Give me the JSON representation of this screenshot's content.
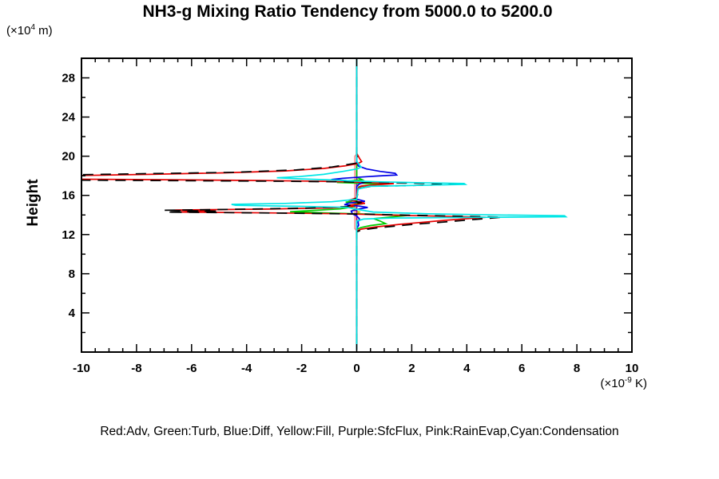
{
  "page": {
    "background": "#ffffff"
  },
  "chart_data": {
    "type": "line",
    "title": "NH3-g Mixing Ratio Tendency from 5000.0 to 5200.0",
    "ylabel": "Height",
    "y_axis_unit": {
      "pre": "(×10",
      "sup": "4",
      "post": " m)"
    },
    "x_axis_unit": {
      "pre": "(×10",
      "sup": "-9",
      "post": " K)"
    },
    "xlim": [
      -10,
      10
    ],
    "ylim": [
      0,
      30
    ],
    "x_major_ticks": [
      -10,
      -8,
      -6,
      -4,
      -2,
      0,
      2,
      4,
      6,
      8,
      10
    ],
    "x_minor_step": 0.5,
    "y_major_ticks": [
      4,
      8,
      12,
      16,
      20,
      24,
      28
    ],
    "y_minor_step": 2,
    "grid": false,
    "frame_color": "#000000",
    "legend": {
      "position": "bottom",
      "text": "Red:Adv, Green:Turb, Blue:Diff, Yellow:Fill, Purple:SfcFlux, Pink:RainEvap,Cyan:Condensation"
    },
    "series": [
      {
        "name": "fill",
        "legend_label": "Yellow:Fill",
        "color": "#cccc00",
        "dash": null,
        "points": [
          [
            0,
            29.9
          ],
          [
            0,
            17.6
          ],
          [
            0.14,
            17.4
          ],
          [
            0,
            17.22
          ],
          [
            0,
            14.72
          ],
          [
            -0.14,
            14.5
          ],
          [
            0.1,
            14.3
          ],
          [
            0,
            14.1
          ],
          [
            0,
            0.2
          ]
        ]
      },
      {
        "name": "sfcflux",
        "legend_label": "Purple:SfcFlux",
        "color": "#990099",
        "dash": null,
        "points": [
          [
            0,
            29.9
          ],
          [
            0,
            0.2
          ]
        ]
      },
      {
        "name": "rainevap",
        "legend_label": "Pink:RainEvap",
        "color": "#ff9999",
        "dash": null,
        "points": [
          [
            0,
            29.9
          ],
          [
            0,
            20.2
          ],
          [
            -0.07,
            20.0
          ],
          [
            -0.07,
            12.6
          ],
          [
            0,
            12.4
          ],
          [
            0,
            0.2
          ]
        ]
      },
      {
        "name": "turb",
        "legend_label": "Green:Turb",
        "color": "#00cc00",
        "dash": null,
        "points": [
          [
            0,
            29.9
          ],
          [
            0,
            17.85
          ],
          [
            0.2,
            17.6
          ],
          [
            -0.35,
            17.45
          ],
          [
            -0.72,
            17.32
          ],
          [
            0.3,
            17.22
          ],
          [
            1.0,
            17.14
          ],
          [
            0.4,
            17.02
          ],
          [
            0.08,
            16.88
          ],
          [
            0,
            16.2
          ],
          [
            0,
            15.5
          ],
          [
            -0.4,
            15.3
          ],
          [
            0.22,
            15.14
          ],
          [
            -0.22,
            15.0
          ],
          [
            -0.05,
            14.86
          ],
          [
            -0.6,
            14.62
          ],
          [
            -1.6,
            14.46
          ],
          [
            -2.42,
            14.33
          ],
          [
            -1.0,
            14.2
          ],
          [
            0.6,
            14.07
          ],
          [
            1.82,
            13.94
          ],
          [
            1.2,
            13.78
          ],
          [
            0.62,
            13.62
          ],
          [
            0.85,
            13.38
          ],
          [
            1.05,
            13.12
          ],
          [
            0.5,
            12.92
          ],
          [
            0.15,
            12.72
          ],
          [
            0,
            12.52
          ],
          [
            0,
            0.2
          ]
        ]
      },
      {
        "name": "diff",
        "legend_label": "Blue:Diff",
        "color": "#0000e6",
        "dash": null,
        "points": [
          [
            0,
            29.9
          ],
          [
            0,
            19.35
          ],
          [
            0.06,
            19.0
          ],
          [
            0.35,
            18.7
          ],
          [
            0.85,
            18.45
          ],
          [
            1.4,
            18.25
          ],
          [
            1.45,
            18.08
          ],
          [
            0.8,
            17.98
          ],
          [
            0.2,
            17.88
          ],
          [
            -0.5,
            17.75
          ],
          [
            -0.92,
            17.62
          ],
          [
            -0.4,
            17.52
          ],
          [
            -0.08,
            17.42
          ],
          [
            0.3,
            17.32
          ],
          [
            0.1,
            17.18
          ],
          [
            0,
            16.9
          ],
          [
            0,
            15.6
          ],
          [
            0.3,
            15.4
          ],
          [
            -0.3,
            15.2
          ],
          [
            -0.45,
            15.05
          ],
          [
            0.1,
            14.9
          ],
          [
            0.4,
            14.76
          ],
          [
            0.1,
            14.62
          ],
          [
            -0.2,
            14.4
          ],
          [
            -0.15,
            14.1
          ],
          [
            0,
            13.9
          ],
          [
            0.1,
            13.6
          ],
          [
            0.05,
            13.3
          ],
          [
            0.07,
            12.95
          ],
          [
            0,
            12.6
          ],
          [
            0,
            0.2
          ]
        ]
      },
      {
        "name": "adv",
        "legend_label": "Red:Adv",
        "color": "#e60000",
        "dash": null,
        "points": [
          [
            0,
            29.9
          ],
          [
            0,
            20.3
          ],
          [
            0.12,
            19.7
          ],
          [
            0.18,
            19.45
          ],
          [
            0.05,
            19.25
          ],
          [
            -0.45,
            19.0
          ],
          [
            -1.2,
            18.75
          ],
          [
            -2.6,
            18.5
          ],
          [
            -4.8,
            18.3
          ],
          [
            -7.5,
            18.15
          ],
          [
            -10.35,
            18.02
          ],
          [
            -10.35,
            17.66
          ],
          [
            -7.0,
            17.6
          ],
          [
            -3.5,
            17.52
          ],
          [
            -1.2,
            17.44
          ],
          [
            -0.3,
            17.38
          ],
          [
            0.6,
            17.3
          ],
          [
            1.35,
            17.2
          ],
          [
            0.7,
            17.08
          ],
          [
            0.15,
            16.95
          ],
          [
            0.02,
            16.6
          ],
          [
            0,
            15.75
          ],
          [
            -0.3,
            15.5
          ],
          [
            0.15,
            15.32
          ],
          [
            0.3,
            15.18
          ],
          [
            -0.25,
            15.02
          ],
          [
            -0.1,
            14.88
          ],
          [
            -0.9,
            14.72
          ],
          [
            -3.2,
            14.6
          ],
          [
            -6.6,
            14.5
          ],
          [
            -5.4,
            14.4
          ],
          [
            -6.4,
            14.3
          ],
          [
            -2.8,
            14.2
          ],
          [
            -0.4,
            14.12
          ],
          [
            0.8,
            14.02
          ],
          [
            2.2,
            13.92
          ],
          [
            3.6,
            13.84
          ],
          [
            4.7,
            13.76
          ],
          [
            3.2,
            13.45
          ],
          [
            1.6,
            13.05
          ],
          [
            0.6,
            12.75
          ],
          [
            0.15,
            12.55
          ],
          [
            0,
            12.35
          ],
          [
            0,
            0.2
          ]
        ]
      },
      {
        "name": "total",
        "legend_label": null,
        "color": "#000000",
        "dash": "13 9",
        "points": [
          [
            0,
            29.9
          ],
          [
            0,
            20.1
          ],
          [
            0.08,
            19.55
          ],
          [
            0,
            19.3
          ],
          [
            -0.9,
            18.9
          ],
          [
            -2.2,
            18.6
          ],
          [
            -4.5,
            18.35
          ],
          [
            -8.0,
            18.2
          ],
          [
            -10.35,
            18.1
          ],
          [
            -10.35,
            17.56
          ],
          [
            -6.5,
            17.5
          ],
          [
            -2.5,
            17.44
          ],
          [
            -0.4,
            17.38
          ],
          [
            1.2,
            17.3
          ],
          [
            2.6,
            17.22
          ],
          [
            3.85,
            17.14
          ],
          [
            2.2,
            17.02
          ],
          [
            0.5,
            16.92
          ],
          [
            0.08,
            16.7
          ],
          [
            0,
            15.7
          ],
          [
            -0.25,
            15.45
          ],
          [
            0.18,
            15.28
          ],
          [
            -0.18,
            15.08
          ],
          [
            -0.35,
            14.85
          ],
          [
            -1.8,
            14.7
          ],
          [
            -4.5,
            14.58
          ],
          [
            -7.0,
            14.48
          ],
          [
            -5.0,
            14.39
          ],
          [
            -6.9,
            14.29
          ],
          [
            -2.2,
            14.18
          ],
          [
            0.5,
            14.08
          ],
          [
            1.8,
            13.98
          ],
          [
            3.6,
            13.88
          ],
          [
            5.3,
            13.78
          ],
          [
            3.6,
            13.38
          ],
          [
            1.9,
            13.0
          ],
          [
            0.8,
            12.7
          ],
          [
            0.2,
            12.48
          ],
          [
            0,
            12.28
          ],
          [
            0,
            0.2
          ]
        ]
      },
      {
        "name": "condensation",
        "legend_label": "Cyan:Condensation",
        "color": "#00e6e6",
        "dash": null,
        "points": [
          [
            0,
            29.9
          ],
          [
            0,
            19.5
          ],
          [
            0.1,
            19.1
          ],
          [
            0.16,
            18.9
          ],
          [
            0.02,
            18.7
          ],
          [
            -0.5,
            18.45
          ],
          [
            -1.2,
            18.15
          ],
          [
            -2.1,
            17.92
          ],
          [
            -2.9,
            17.8
          ],
          [
            -2.0,
            17.68
          ],
          [
            -0.9,
            17.58
          ],
          [
            -0.2,
            17.48
          ],
          [
            0.9,
            17.38
          ],
          [
            2.2,
            17.3
          ],
          [
            3.9,
            17.22
          ],
          [
            3.95,
            17.12
          ],
          [
            2.2,
            17.02
          ],
          [
            0.45,
            16.92
          ],
          [
            0.05,
            16.65
          ],
          [
            0,
            15.6
          ],
          [
            -0.9,
            15.35
          ],
          [
            -2.6,
            15.18
          ],
          [
            -4.55,
            15.08
          ],
          [
            -4.4,
            14.98
          ],
          [
            -2.0,
            14.88
          ],
          [
            -0.35,
            14.78
          ],
          [
            -0.05,
            14.6
          ],
          [
            0.6,
            14.3
          ],
          [
            2.6,
            14.12
          ],
          [
            5.2,
            14.0
          ],
          [
            7.55,
            13.92
          ],
          [
            7.6,
            13.82
          ],
          [
            4.2,
            13.75
          ],
          [
            1.2,
            13.68
          ],
          [
            0.25,
            13.58
          ],
          [
            0,
            13.38
          ],
          [
            0,
            0.2
          ]
        ]
      }
    ]
  }
}
